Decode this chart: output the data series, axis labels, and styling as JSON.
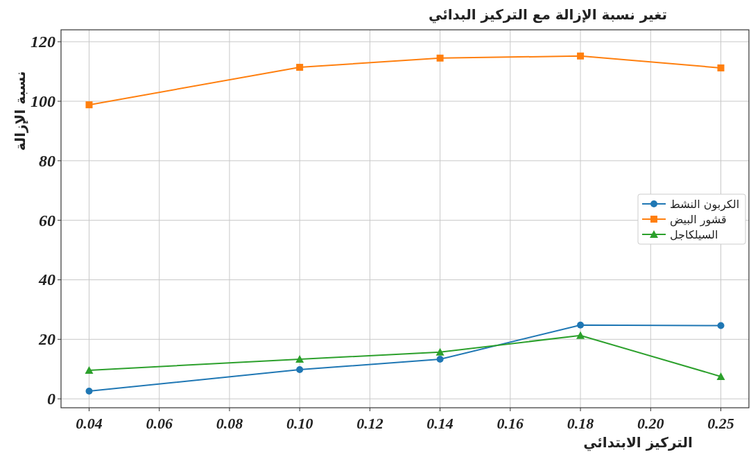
{
  "chart_data": {
    "type": "line",
    "title": "تغير نسبة الإزالة مع التركيز البدائي",
    "xlabel": "التركيز الابتدائي",
    "ylabel": "نسبة الإزالة",
    "categories": [
      "0.04",
      "0.06",
      "0.08",
      "0.10",
      "0.12",
      "0.14",
      "0.16",
      "0.18",
      "0.20",
      "0.25"
    ],
    "series": [
      {
        "name": "الكربون النشط",
        "color": "#1f77b4",
        "marker": "circle",
        "values": [
          2.6,
          null,
          null,
          9.8,
          null,
          13.3,
          null,
          24.8,
          null,
          24.6
        ]
      },
      {
        "name": "قشور البيض",
        "color": "#ff7f0e",
        "marker": "square",
        "values": [
          98.8,
          null,
          null,
          111.4,
          null,
          114.5,
          null,
          115.2,
          null,
          111.2
        ]
      },
      {
        "name": "السيلكاجل",
        "color": "#2ca02c",
        "marker": "triangle",
        "values": [
          9.6,
          null,
          null,
          13.3,
          null,
          15.7,
          null,
          21.3,
          null,
          7.5
        ]
      }
    ],
    "ylim": [
      -3,
      124
    ],
    "yticks": [
      0,
      20,
      40,
      60,
      80,
      100,
      120
    ],
    "grid": true,
    "legend": "right"
  }
}
